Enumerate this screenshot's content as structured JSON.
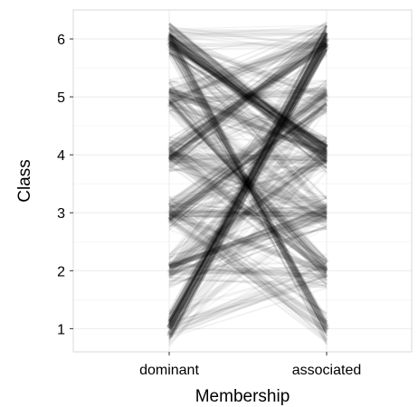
{
  "chart_data": {
    "type": "parallel-coordinates",
    "xlabel": "Membership",
    "ylabel": "Class",
    "categories": [
      "dominant",
      "associated"
    ],
    "ylim": [
      0.6,
      6.5
    ],
    "yticks": [
      1,
      2,
      3,
      4,
      5,
      6
    ],
    "grid": true,
    "ink_color": "#000000",
    "grid_color": "#ebebeb",
    "frame_color": "#d9d9d9",
    "flows": [
      {
        "dominant": 6,
        "associated": 4,
        "weight": 0.95,
        "lines": 24
      },
      {
        "dominant": 1,
        "associated": 6,
        "weight": 0.9,
        "lines": 22
      },
      {
        "dominant": 6,
        "associated": 1,
        "weight": 0.55,
        "lines": 14
      },
      {
        "dominant": 4,
        "associated": 6,
        "weight": 0.7,
        "lines": 18
      },
      {
        "dominant": 3,
        "associated": 5,
        "weight": 0.6,
        "lines": 16
      },
      {
        "dominant": 2,
        "associated": 3,
        "weight": 0.55,
        "lines": 14
      },
      {
        "dominant": 5,
        "associated": 2,
        "weight": 0.45,
        "lines": 12
      },
      {
        "dominant": 4,
        "associated": 2,
        "weight": 0.4,
        "lines": 10
      },
      {
        "dominant": 3,
        "associated": 1,
        "weight": 0.35,
        "lines": 10
      },
      {
        "dominant": 5,
        "associated": 4,
        "weight": 0.45,
        "lines": 12
      },
      {
        "dominant": 3,
        "associated": 3,
        "weight": 0.4,
        "lines": 10
      },
      {
        "dominant": 2,
        "associated": 4,
        "weight": 0.35,
        "lines": 10
      },
      {
        "dominant": 5,
        "associated": 6,
        "weight": 0.35,
        "lines": 10
      },
      {
        "dominant": 4,
        "associated": 3,
        "weight": 0.35,
        "lines": 10
      },
      {
        "dominant": 1,
        "associated": 2,
        "weight": 0.25,
        "lines": 8
      },
      {
        "dominant": 6,
        "associated": 6,
        "weight": 0.25,
        "lines": 8
      },
      {
        "dominant": 4,
        "associated": 4,
        "weight": 0.3,
        "lines": 8
      },
      {
        "dominant": 5,
        "associated": 5,
        "weight": 0.25,
        "lines": 8
      },
      {
        "dominant": 2,
        "associated": 2,
        "weight": 0.25,
        "lines": 8
      },
      {
        "dominant": 3,
        "associated": 4,
        "weight": 0.25,
        "lines": 8
      },
      {
        "dominant": 2,
        "associated": 5,
        "weight": 0.2,
        "lines": 6
      },
      {
        "dominant": 6,
        "associated": 3,
        "weight": 0.2,
        "lines": 6
      },
      {
        "dominant": 4,
        "associated": 5,
        "weight": 0.2,
        "lines": 6
      },
      {
        "dominant": 3,
        "associated": 2,
        "weight": 0.2,
        "lines": 6
      },
      {
        "dominant": 5,
        "associated": 3,
        "weight": 0.2,
        "lines": 6
      },
      {
        "dominant": 1,
        "associated": 4,
        "weight": 0.15,
        "lines": 5
      },
      {
        "dominant": 6,
        "associated": 5,
        "weight": 0.2,
        "lines": 6
      },
      {
        "dominant": 1,
        "associated": 3,
        "weight": 0.12,
        "lines": 4
      },
      {
        "dominant": 2,
        "associated": 6,
        "weight": 0.12,
        "lines": 4
      },
      {
        "dominant": 1,
        "associated": 5,
        "weight": 0.1,
        "lines": 4
      }
    ]
  }
}
